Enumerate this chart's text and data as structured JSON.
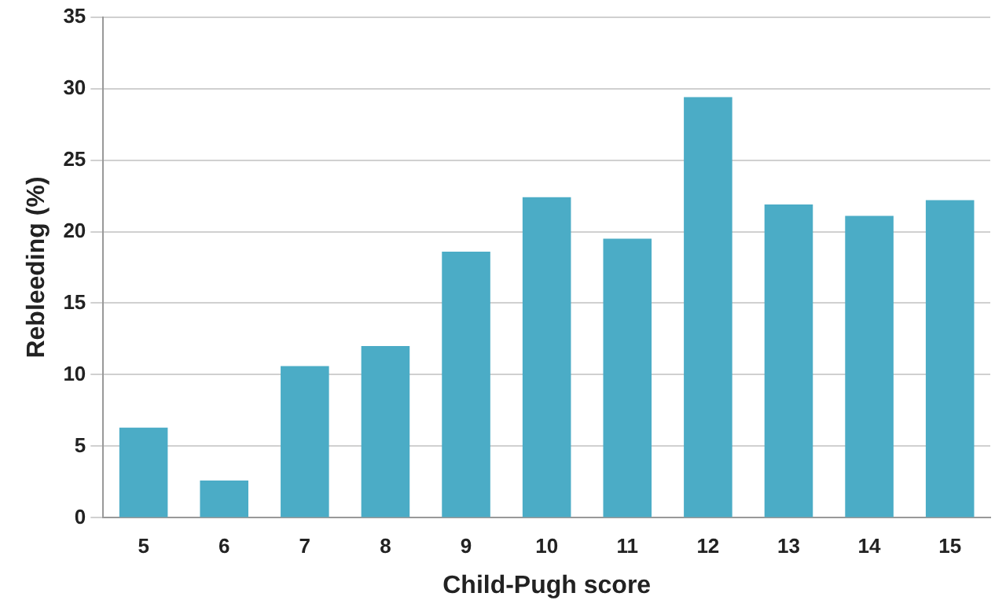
{
  "chart_data": {
    "type": "bar",
    "xlabel": "Child-Pugh score",
    "ylabel": "Rebleeding (%)",
    "categories": [
      "5",
      "6",
      "7",
      "8",
      "9",
      "10",
      "11",
      "12",
      "13",
      "14",
      "15"
    ],
    "values": [
      6.3,
      2.6,
      10.6,
      12.0,
      18.6,
      22.4,
      19.5,
      29.4,
      21.9,
      21.1,
      22.2
    ],
    "color": "#4bacc6",
    "ylim": [
      0,
      35
    ],
    "yticks": [
      0,
      5,
      10,
      15,
      20,
      25,
      30,
      35
    ],
    "grid": "y"
  }
}
